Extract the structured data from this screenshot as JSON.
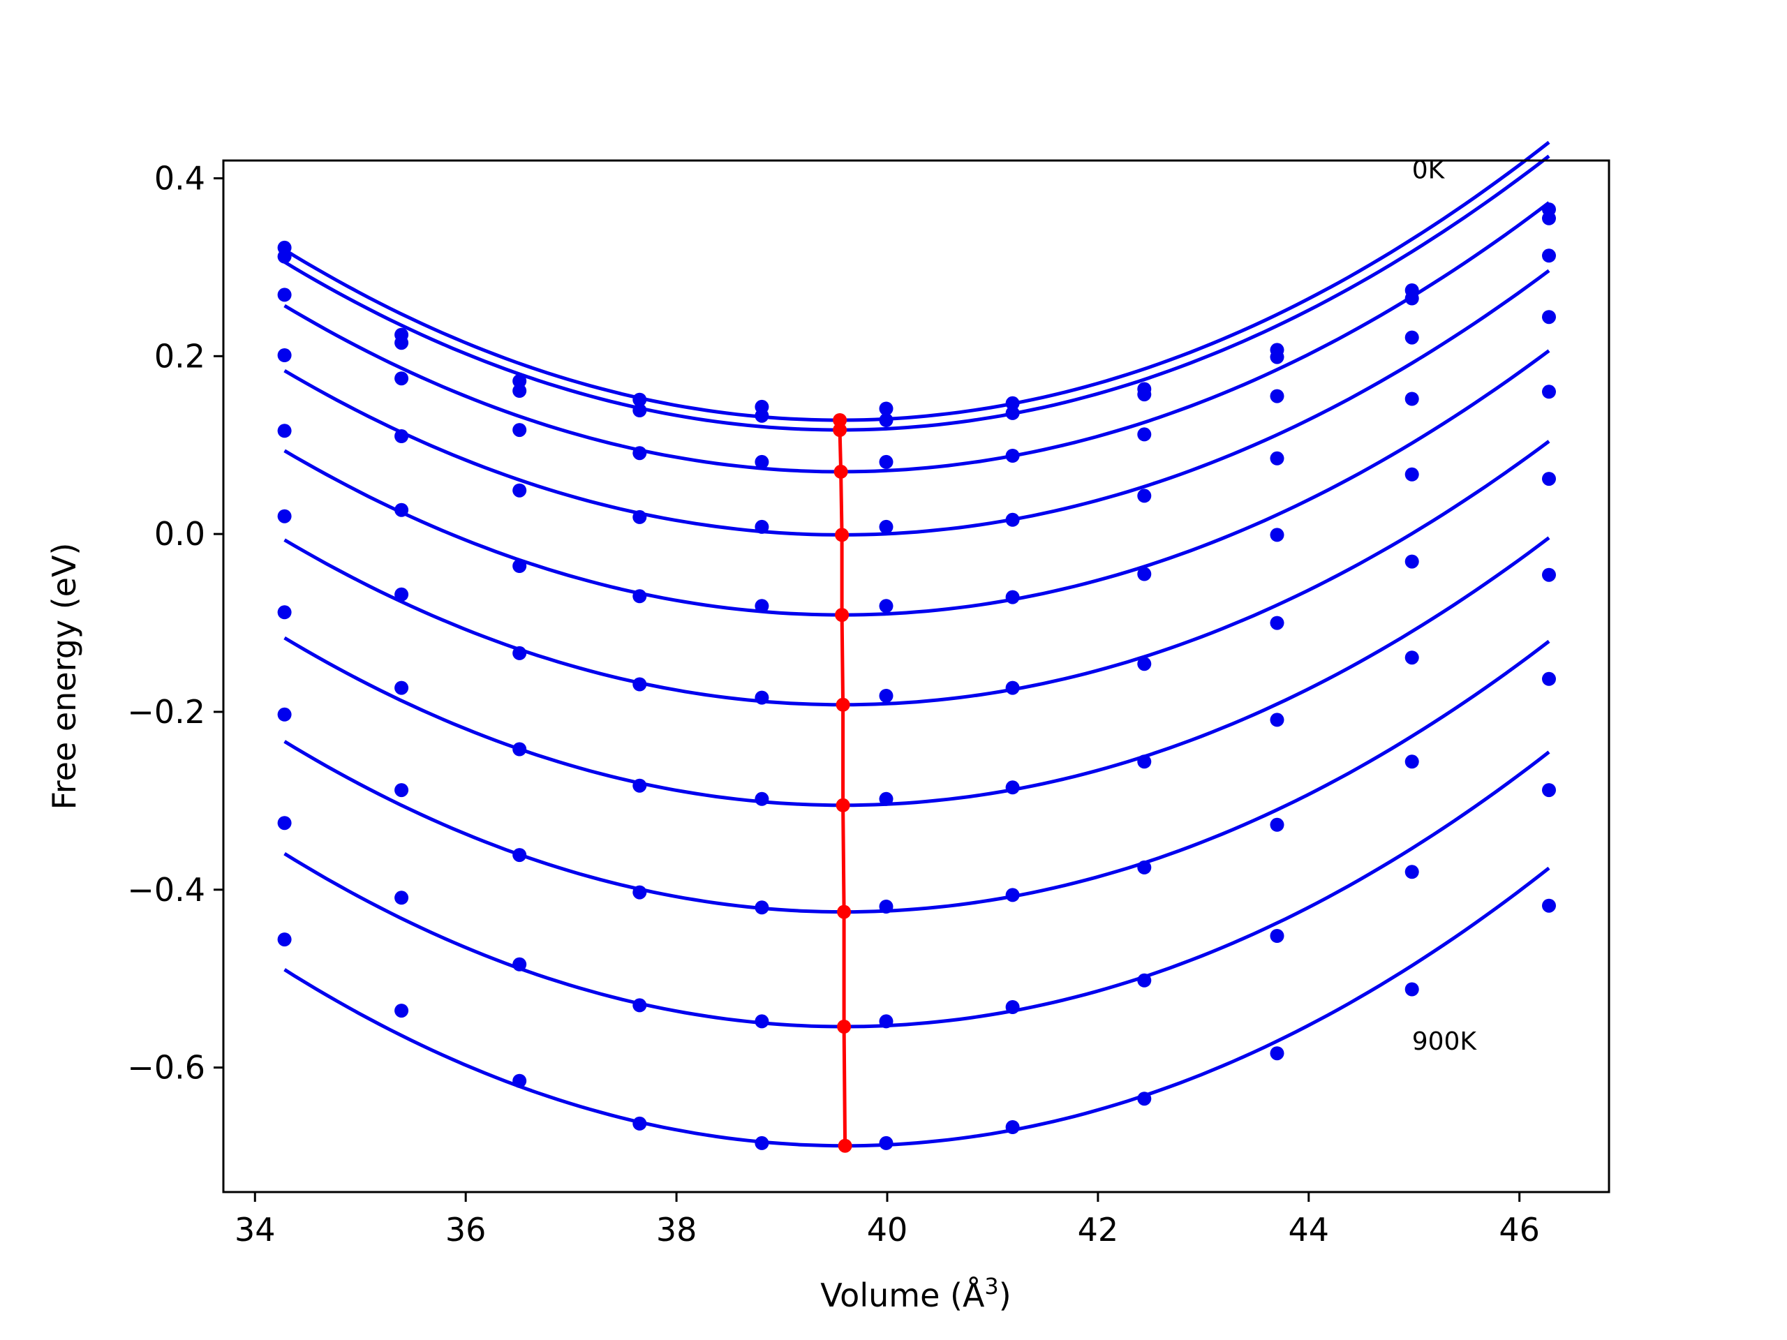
{
  "chart_data": {
    "type": "line",
    "title": "",
    "xlabel_main": "Volume (",
    "xlabel_unit": "Å",
    "xlabel_exp": "3",
    "xlabel_close": ")",
    "ylabel": "Free energy (eV)",
    "xlim": [
      33.7,
      46.85
    ],
    "ylim": [
      -0.74,
      0.42
    ],
    "xticks": [
      34,
      36,
      38,
      40,
      42,
      44,
      46
    ],
    "xtick_labels": [
      "34",
      "36",
      "38",
      "40",
      "42",
      "44",
      "46"
    ],
    "yticks": [
      -0.6,
      -0.4,
      -0.2,
      0.0,
      0.2,
      0.4
    ],
    "ytick_labels": [
      "−0.6",
      "−0.4",
      "−0.2",
      "0.0",
      "0.2",
      "0.4"
    ],
    "grid": false,
    "annotations": [
      {
        "text": "0K",
        "x": 44.98,
        "y": 0.4
      },
      {
        "text": "900K",
        "x": 44.98,
        "y": -0.58
      }
    ],
    "volumes": [
      34.28,
      35.39,
      36.51,
      37.65,
      38.81,
      39.99,
      41.19,
      42.44,
      43.7,
      44.98,
      46.28
    ],
    "series": [
      {
        "color": "#0000ee",
        "fit": {
          "v0": 39.55,
          "e0": 0.128,
          "a": 0.0069
        },
        "points": [
          0.322,
          0.215,
          0.172,
          0.151,
          0.143,
          0.141,
          0.147,
          0.163,
          0.207,
          0.274,
          0.365
        ]
      },
      {
        "color": "#0000ee",
        "fit": {
          "v0": 39.55,
          "e0": 0.117,
          "a": 0.0068
        },
        "points": [
          0.312,
          0.224,
          0.161,
          0.139,
          0.133,
          0.128,
          0.136,
          0.157,
          0.199,
          0.265,
          0.355
        ]
      },
      {
        "color": "#0000ee",
        "fit": {
          "v0": 39.56,
          "e0": 0.07,
          "a": 0.0067
        },
        "points": [
          0.269,
          0.175,
          0.117,
          0.091,
          0.081,
          0.081,
          0.088,
          0.112,
          0.155,
          0.221,
          0.313
        ]
      },
      {
        "color": "#0000ee",
        "fit": {
          "v0": 39.57,
          "e0": -0.001,
          "a": 0.0066
        },
        "points": [
          0.201,
          0.11,
          0.049,
          0.019,
          0.008,
          0.008,
          0.016,
          0.043,
          0.085,
          0.152,
          0.244
        ]
      },
      {
        "color": "#0000ee",
        "fit": {
          "v0": 39.57,
          "e0": -0.091,
          "a": 0.0066
        },
        "points": [
          0.116,
          0.027,
          -0.036,
          -0.07,
          -0.081,
          -0.081,
          -0.071,
          -0.045,
          -0.001,
          0.067,
          0.16
        ]
      },
      {
        "color": "#0000ee",
        "fit": {
          "v0": 39.58,
          "e0": -0.192,
          "a": 0.0066
        },
        "points": [
          0.02,
          -0.068,
          -0.134,
          -0.169,
          -0.184,
          -0.182,
          -0.173,
          -0.146,
          -0.1,
          -0.031,
          0.062
        ]
      },
      {
        "color": "#0000ee",
        "fit": {
          "v0": 39.58,
          "e0": -0.305,
          "a": 0.0067
        },
        "points": [
          -0.088,
          -0.173,
          -0.242,
          -0.283,
          -0.298,
          -0.298,
          -0.285,
          -0.256,
          -0.209,
          -0.139,
          -0.046
        ]
      },
      {
        "color": "#0000ee",
        "fit": {
          "v0": 39.59,
          "e0": -0.425,
          "a": 0.0068
        },
        "points": [
          -0.203,
          -0.288,
          -0.361,
          -0.403,
          -0.42,
          -0.419,
          -0.406,
          -0.375,
          -0.327,
          -0.256,
          -0.163
        ]
      },
      {
        "color": "#0000ee",
        "fit": {
          "v0": 39.59,
          "e0": -0.554,
          "a": 0.0069
        },
        "points": [
          -0.325,
          -0.409,
          -0.484,
          -0.53,
          -0.548,
          -0.548,
          -0.532,
          -0.502,
          -0.452,
          -0.38,
          -0.288
        ]
      },
      {
        "color": "#0000ee",
        "fit": {
          "v0": 39.6,
          "e0": -0.688,
          "a": 0.007
        },
        "points": [
          -0.456,
          -0.536,
          -0.615,
          -0.663,
          -0.685,
          -0.685,
          -0.667,
          -0.635,
          -0.584,
          -0.512,
          -0.418
        ]
      }
    ],
    "minima_line": {
      "color": "#ff0000",
      "points": [
        {
          "x": 39.55,
          "y": 0.128
        },
        {
          "x": 39.55,
          "y": 0.117
        },
        {
          "x": 39.56,
          "y": 0.07
        },
        {
          "x": 39.57,
          "y": -0.001
        },
        {
          "x": 39.57,
          "y": -0.091
        },
        {
          "x": 39.58,
          "y": -0.192
        },
        {
          "x": 39.58,
          "y": -0.305
        },
        {
          "x": 39.59,
          "y": -0.425
        },
        {
          "x": 39.59,
          "y": -0.554
        },
        {
          "x": 39.6,
          "y": -0.688
        }
      ]
    }
  }
}
